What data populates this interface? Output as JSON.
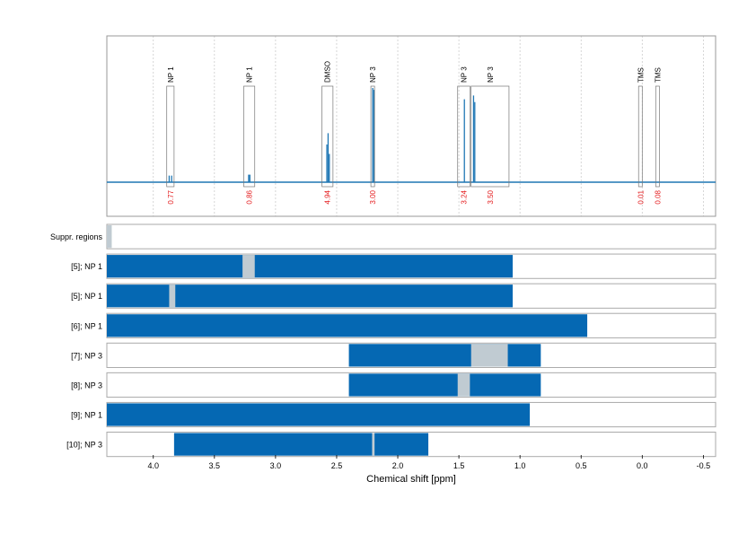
{
  "chart_data": {
    "type": "bar",
    "xlabel": "Chemical shift [ppm]",
    "xlim": [
      4.38,
      -0.6
    ],
    "x_reversed": true,
    "ticks": [
      "4.0",
      "3.5",
      "3.0",
      "2.5",
      "2.0",
      "1.5",
      "1.0",
      "0.5",
      "0.0",
      "-0.5"
    ],
    "grid_lines": [
      4.0,
      3.5,
      3.0,
      2.5,
      2.0,
      1.5,
      1.0,
      0.5,
      0.0,
      -0.5
    ],
    "spectrum": {
      "regions": [
        {
          "label": "NP 1",
          "integral": "0.77",
          "from": 3.89,
          "to": 3.83
        },
        {
          "label": "NP 1",
          "integral": "0.86",
          "from": 3.26,
          "to": 3.17
        },
        {
          "label": "DMSO",
          "integral": "4.94",
          "from": 2.62,
          "to": 2.53
        },
        {
          "label": "NP 3",
          "integral": "3.00",
          "from": 2.22,
          "to": 2.19
        },
        {
          "label": "NP 3",
          "integral": "3.24",
          "from": 1.51,
          "to": 1.41
        },
        {
          "label": "NP 3",
          "integral": "3.50",
          "from": 1.4,
          "to": 1.09
        },
        {
          "label": "TMS",
          "integral": "0.01",
          "from": 0.03,
          "to": 0.0
        },
        {
          "label": "TMS",
          "integral": "0.08",
          "from": -0.11,
          "to": -0.14
        }
      ],
      "peaks": [
        {
          "ppm": 3.87,
          "height": 0.07
        },
        {
          "ppm": 3.85,
          "height": 0.07
        },
        {
          "ppm": 3.22,
          "height": 0.08
        },
        {
          "ppm": 3.21,
          "height": 0.08
        },
        {
          "ppm": 2.58,
          "height": 0.4
        },
        {
          "ppm": 2.57,
          "height": 0.52
        },
        {
          "ppm": 2.56,
          "height": 0.3
        },
        {
          "ppm": 2.205,
          "height": 1.0
        },
        {
          "ppm": 2.195,
          "height": 0.98
        },
        {
          "ppm": 1.455,
          "height": 0.88
        },
        {
          "ppm": 1.38,
          "height": 0.92
        },
        {
          "ppm": 1.37,
          "height": 0.85
        }
      ]
    },
    "rows": [
      {
        "label": "Suppr. regions",
        "bars": [],
        "gaps": [
          {
            "from": 4.38,
            "to": 4.34
          }
        ]
      },
      {
        "label": "[5]; NP 1",
        "bars": [
          {
            "from": 4.38,
            "to": 1.06
          }
        ],
        "gaps": [
          {
            "from": 3.27,
            "to": 3.17
          }
        ]
      },
      {
        "label": "[5]; NP 1",
        "bars": [
          {
            "from": 4.38,
            "to": 1.06
          }
        ],
        "gaps": [
          {
            "from": 3.87,
            "to": 3.82
          }
        ]
      },
      {
        "label": "[6]; NP 1",
        "bars": [
          {
            "from": 4.38,
            "to": 0.45
          }
        ],
        "gaps": []
      },
      {
        "label": "[7]; NP 3",
        "bars": [
          {
            "from": 2.4,
            "to": 0.83
          }
        ],
        "gaps": [
          {
            "from": 1.4,
            "to": 1.1
          }
        ]
      },
      {
        "label": "[8]; NP 3",
        "bars": [
          {
            "from": 2.4,
            "to": 0.83
          }
        ],
        "gaps": [
          {
            "from": 1.51,
            "to": 1.41
          }
        ]
      },
      {
        "label": "[9]; NP 1",
        "bars": [
          {
            "from": 4.38,
            "to": 0.92
          }
        ],
        "gaps": []
      },
      {
        "label": "[10]; NP 3",
        "bars": [
          {
            "from": 3.83,
            "to": 1.75
          }
        ],
        "gaps": [
          {
            "from": 2.21,
            "to": 2.19
          }
        ]
      }
    ],
    "colors": {
      "bar": "#0568b3",
      "gap": "#c0cbd2",
      "spectrum": "#1f77b4",
      "integral": "#e41a1c",
      "grid": "#cccccc",
      "frame": "#999999"
    }
  }
}
